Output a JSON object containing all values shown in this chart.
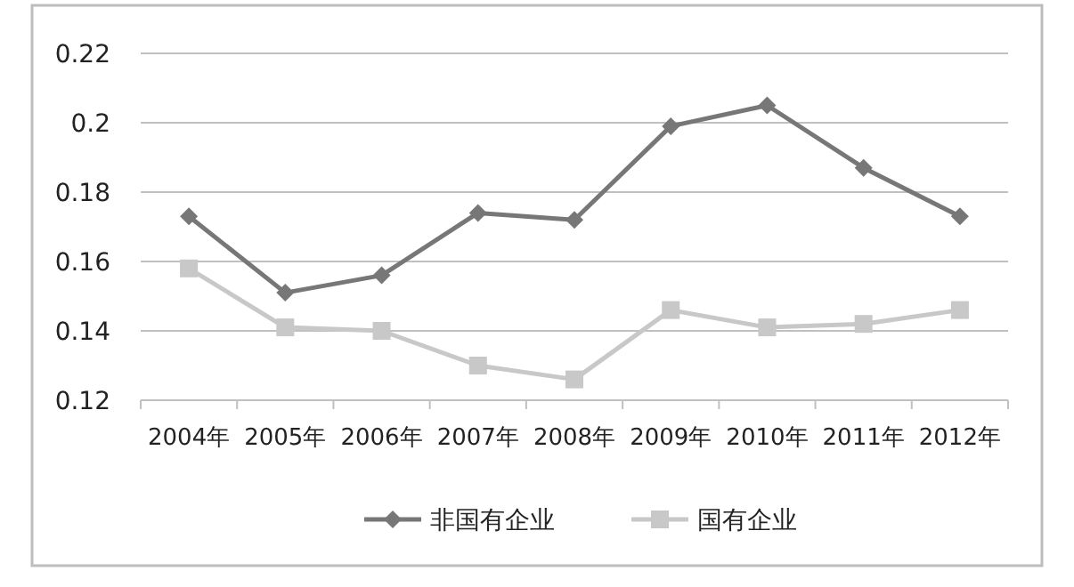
{
  "chart_data": {
    "type": "line",
    "categories": [
      "2004年",
      "2005年",
      "2006年",
      "2007年",
      "2008年",
      "2009年",
      "2010年",
      "2011年",
      "2012年"
    ],
    "series": [
      {
        "name": "非国有企业",
        "color": "#777777",
        "marker": "diamond",
        "values": [
          0.173,
          0.151,
          0.156,
          0.174,
          0.172,
          0.199,
          0.205,
          0.187,
          0.173
        ]
      },
      {
        "name": "国有企业",
        "color": "#c8c8c8",
        "marker": "square",
        "values": [
          0.158,
          0.141,
          0.14,
          0.13,
          0.126,
          0.146,
          0.141,
          0.142,
          0.146
        ]
      }
    ],
    "ylim": [
      0.12,
      0.22
    ],
    "yticks": [
      0.12,
      0.14,
      0.16,
      0.18,
      0.2,
      0.22
    ],
    "grid": "y",
    "legend": "bottom"
  }
}
